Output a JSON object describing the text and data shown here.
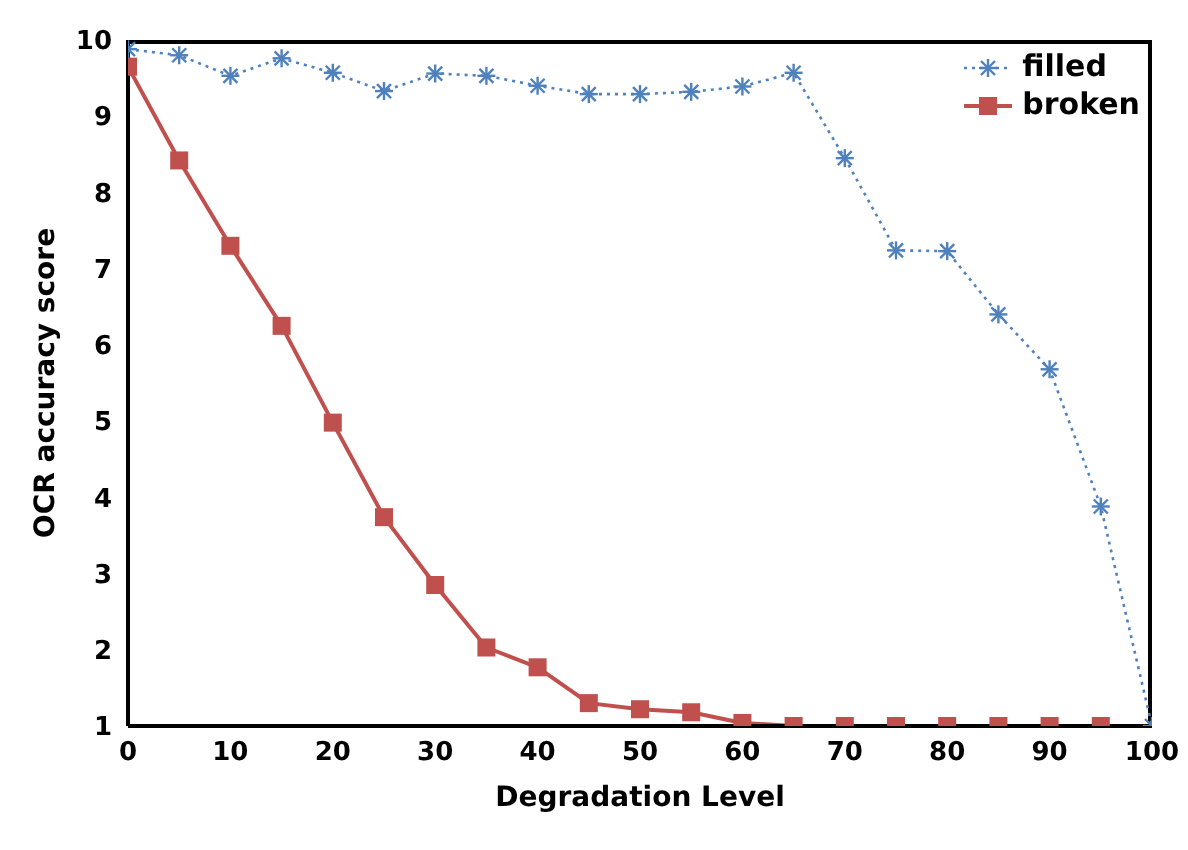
{
  "chart_data": {
    "type": "line",
    "xlabel": "Degradation Level",
    "ylabel": "OCR accuracy score",
    "x": [
      0,
      5,
      10,
      15,
      20,
      25,
      30,
      35,
      40,
      45,
      50,
      55,
      60,
      65,
      70,
      75,
      80,
      85,
      90,
      95,
      100
    ],
    "xlim": [
      0,
      100
    ],
    "xticks": [
      0,
      10,
      20,
      30,
      40,
      50,
      60,
      70,
      80,
      90,
      100
    ],
    "ylim": [
      1,
      10
    ],
    "yticks": [
      1,
      2,
      3,
      4,
      5,
      6,
      7,
      8,
      9,
      10
    ],
    "grid": false,
    "legend": "top right",
    "series": [
      {
        "name": "filled",
        "color": "#4f81bd",
        "marker": "cross",
        "line_style": "dotted",
        "values": [
          9.88,
          9.8,
          9.53,
          9.76,
          9.57,
          9.33,
          9.56,
          9.53,
          9.4,
          9.29,
          9.29,
          9.32,
          9.39,
          9.57,
          8.45,
          7.24,
          7.23,
          6.4,
          5.68,
          3.88,
          1.0
        ]
      },
      {
        "name": "broken",
        "color": "#c0504d",
        "marker": "square",
        "line_style": "solid",
        "values": [
          9.65,
          8.42,
          7.3,
          6.25,
          4.98,
          3.74,
          2.85,
          2.03,
          1.77,
          1.3,
          1.22,
          1.18,
          1.04,
          1.0,
          1.0,
          1.0,
          1.0,
          1.0,
          1.0,
          1.0,
          null
        ]
      }
    ]
  }
}
